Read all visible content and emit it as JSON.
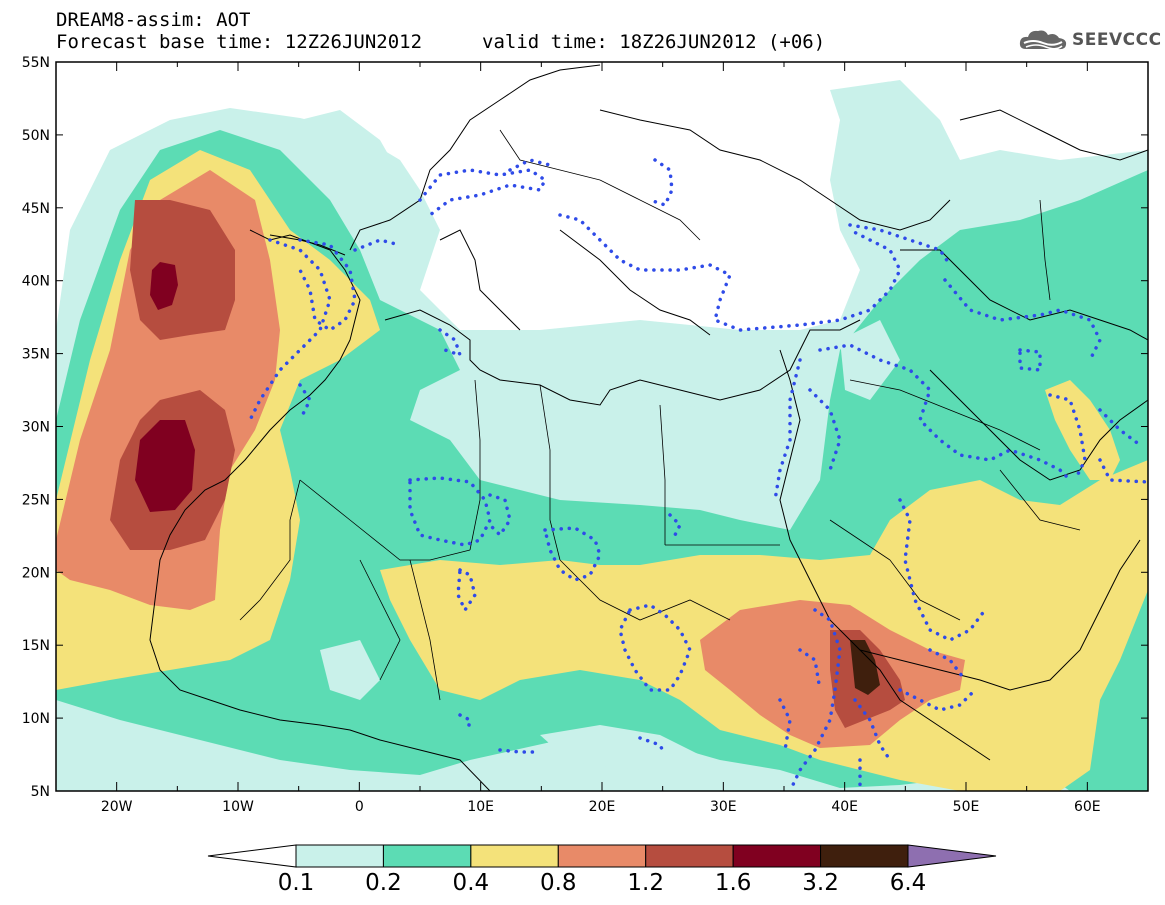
{
  "title": {
    "line1": "DREAM8-assim: AOT",
    "line2": "Forecast base time: 12Z26JUN2012",
    "line2b": "valid time: 18Z26JUN2012 (+06)"
  },
  "logo": {
    "text": "SEEVCCC",
    "icon": "cloud-icon"
  },
  "map_data": {
    "variable": "AOT",
    "projection": "lat-lon",
    "lat_range": [
      5,
      55
    ],
    "lon_range": [
      -25,
      65
    ],
    "lat_ticks": [
      "55N",
      "50N",
      "45N",
      "40N",
      "35N",
      "30N",
      "25N",
      "20N",
      "15N",
      "10N",
      "5N"
    ],
    "lon_ticks": [
      "20W",
      "10W",
      "0",
      "10E",
      "20E",
      "30E",
      "40E",
      "50E",
      "60E"
    ],
    "colorbar": {
      "levels": [
        "0.1",
        "0.2",
        "0.4",
        "0.8",
        "1.2",
        "1.6",
        "3.2",
        "6.4"
      ],
      "colors": [
        "#ffffff",
        "#c9f1ea",
        "#5cdcb4",
        "#f4e27a",
        "#e88a68",
        "#b64d3f",
        "#800020",
        "#3f1f0d",
        "#8e6fb0"
      ]
    }
  }
}
